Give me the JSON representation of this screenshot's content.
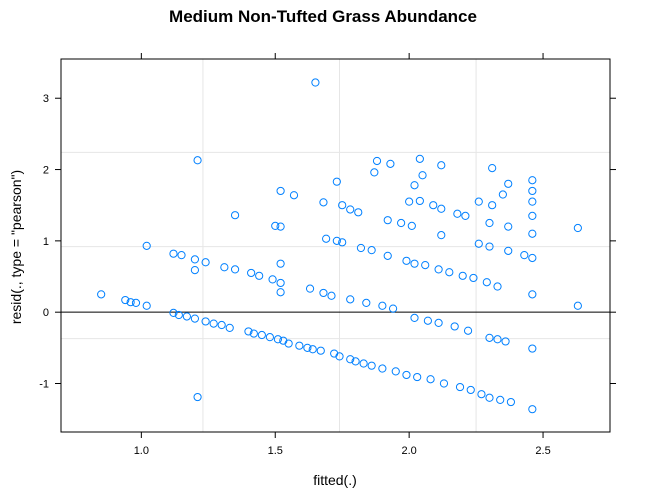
{
  "chart_data": {
    "type": "scatter",
    "title": "Medium Non-Tufted Grass Abundance",
    "xlabel": "fitted(.)",
    "ylabel": "resid(., type = \"pearson\")",
    "xlim": [
      0.7,
      2.75
    ],
    "ylim": [
      -1.68,
      3.55
    ],
    "xticks": [
      1.0,
      1.5,
      2.0,
      2.5
    ],
    "yticks": [
      -1,
      0,
      1,
      2,
      3
    ],
    "xtick_labels": [
      "1.0",
      "1.5",
      "2.0",
      "2.5"
    ],
    "ytick_labels": [
      "-1",
      "0",
      "1",
      "2",
      "3"
    ],
    "grid": true,
    "gridlines_x": [
      1.23,
      1.74,
      2.25
    ],
    "gridlines_y": [
      -0.37,
      0.92,
      2.24
    ],
    "reference_line_y": 0,
    "marker_color": "#0080ff",
    "points": [
      [
        0.85,
        0.25
      ],
      [
        0.94,
        0.17
      ],
      [
        0.96,
        0.14
      ],
      [
        0.98,
        0.13
      ],
      [
        1.02,
        0.09
      ],
      [
        1.02,
        0.93
      ],
      [
        1.12,
        0.82
      ],
      [
        1.12,
        -0.01
      ],
      [
        1.14,
        -0.04
      ],
      [
        1.15,
        0.8
      ],
      [
        1.17,
        -0.06
      ],
      [
        1.2,
        -0.09
      ],
      [
        1.2,
        0.74
      ],
      [
        1.2,
        0.59
      ],
      [
        1.21,
        2.13
      ],
      [
        1.21,
        -1.19
      ],
      [
        1.24,
        0.7
      ],
      [
        1.24,
        -0.13
      ],
      [
        1.27,
        -0.16
      ],
      [
        1.3,
        -0.18
      ],
      [
        1.31,
        0.63
      ],
      [
        1.33,
        -0.22
      ],
      [
        1.35,
        0.6
      ],
      [
        1.35,
        1.36
      ],
      [
        1.4,
        -0.27
      ],
      [
        1.41,
        0.55
      ],
      [
        1.42,
        -0.3
      ],
      [
        1.44,
        0.51
      ],
      [
        1.45,
        -0.32
      ],
      [
        1.48,
        -0.35
      ],
      [
        1.49,
        0.46
      ],
      [
        1.5,
        1.21
      ],
      [
        1.51,
        -0.38
      ],
      [
        1.52,
        0.41
      ],
      [
        1.52,
        1.2
      ],
      [
        1.52,
        1.7
      ],
      [
        1.52,
        0.28
      ],
      [
        1.52,
        0.68
      ],
      [
        1.53,
        -0.4
      ],
      [
        1.55,
        -0.44
      ],
      [
        1.57,
        1.64
      ],
      [
        1.59,
        -0.47
      ],
      [
        1.62,
        -0.5
      ],
      [
        1.63,
        0.33
      ],
      [
        1.64,
        -0.52
      ],
      [
        1.65,
        3.22
      ],
      [
        1.67,
        -0.54
      ],
      [
        1.68,
        0.27
      ],
      [
        1.68,
        1.54
      ],
      [
        1.69,
        1.03
      ],
      [
        1.71,
        0.23
      ],
      [
        1.72,
        -0.58
      ],
      [
        1.73,
        1.83
      ],
      [
        1.73,
        1.0
      ],
      [
        1.74,
        -0.62
      ],
      [
        1.75,
        0.98
      ],
      [
        1.75,
        1.5
      ],
      [
        1.78,
        0.18
      ],
      [
        1.78,
        -0.66
      ],
      [
        1.78,
        1.44
      ],
      [
        1.8,
        -0.69
      ],
      [
        1.81,
        1.4
      ],
      [
        1.82,
        0.9
      ],
      [
        1.83,
        -0.72
      ],
      [
        1.84,
        0.13
      ],
      [
        1.86,
        0.87
      ],
      [
        1.86,
        -0.75
      ],
      [
        1.87,
        1.96
      ],
      [
        1.88,
        2.12
      ],
      [
        1.9,
        0.09
      ],
      [
        1.9,
        -0.79
      ],
      [
        1.92,
        0.79
      ],
      [
        1.92,
        1.29
      ],
      [
        1.93,
        2.08
      ],
      [
        1.94,
        0.05
      ],
      [
        1.95,
        -0.83
      ],
      [
        1.97,
        1.25
      ],
      [
        1.99,
        0.72
      ],
      [
        1.99,
        -0.88
      ],
      [
        2.0,
        1.55
      ],
      [
        2.01,
        1.21
      ],
      [
        2.02,
        0.68
      ],
      [
        2.02,
        1.78
      ],
      [
        2.02,
        -0.08
      ],
      [
        2.03,
        -0.91
      ],
      [
        2.04,
        1.56
      ],
      [
        2.04,
        2.15
      ],
      [
        2.05,
        1.92
      ],
      [
        2.06,
        0.66
      ],
      [
        2.07,
        -0.12
      ],
      [
        2.08,
        -0.94
      ],
      [
        2.09,
        1.5
      ],
      [
        2.11,
        0.6
      ],
      [
        2.11,
        -0.15
      ],
      [
        2.12,
        1.08
      ],
      [
        2.12,
        1.45
      ],
      [
        2.12,
        2.06
      ],
      [
        2.13,
        -1.0
      ],
      [
        2.15,
        0.56
      ],
      [
        2.17,
        -0.2
      ],
      [
        2.18,
        1.38
      ],
      [
        2.19,
        -1.05
      ],
      [
        2.2,
        0.51
      ],
      [
        2.21,
        1.35
      ],
      [
        2.22,
        -0.26
      ],
      [
        2.23,
        -1.09
      ],
      [
        2.24,
        0.48
      ],
      [
        2.26,
        0.96
      ],
      [
        2.26,
        1.55
      ],
      [
        2.27,
        -1.15
      ],
      [
        2.29,
        0.42
      ],
      [
        2.3,
        1.25
      ],
      [
        2.3,
        0.92
      ],
      [
        2.3,
        -0.36
      ],
      [
        2.3,
        -1.2
      ],
      [
        2.31,
        2.02
      ],
      [
        2.31,
        1.5
      ],
      [
        2.33,
        -0.38
      ],
      [
        2.33,
        0.36
      ],
      [
        2.34,
        -1.23
      ],
      [
        2.35,
        1.65
      ],
      [
        2.36,
        -0.41
      ],
      [
        2.37,
        1.8
      ],
      [
        2.37,
        0.86
      ],
      [
        2.37,
        1.2
      ],
      [
        2.38,
        -1.26
      ],
      [
        2.43,
        0.8
      ],
      [
        2.46,
        1.85
      ],
      [
        2.46,
        1.7
      ],
      [
        2.46,
        1.55
      ],
      [
        2.46,
        1.35
      ],
      [
        2.46,
        1.1
      ],
      [
        2.46,
        0.25
      ],
      [
        2.46,
        0.76
      ],
      [
        2.46,
        -0.51
      ],
      [
        2.46,
        -1.36
      ],
      [
        2.63,
        1.18
      ],
      [
        2.63,
        0.09
      ]
    ]
  }
}
